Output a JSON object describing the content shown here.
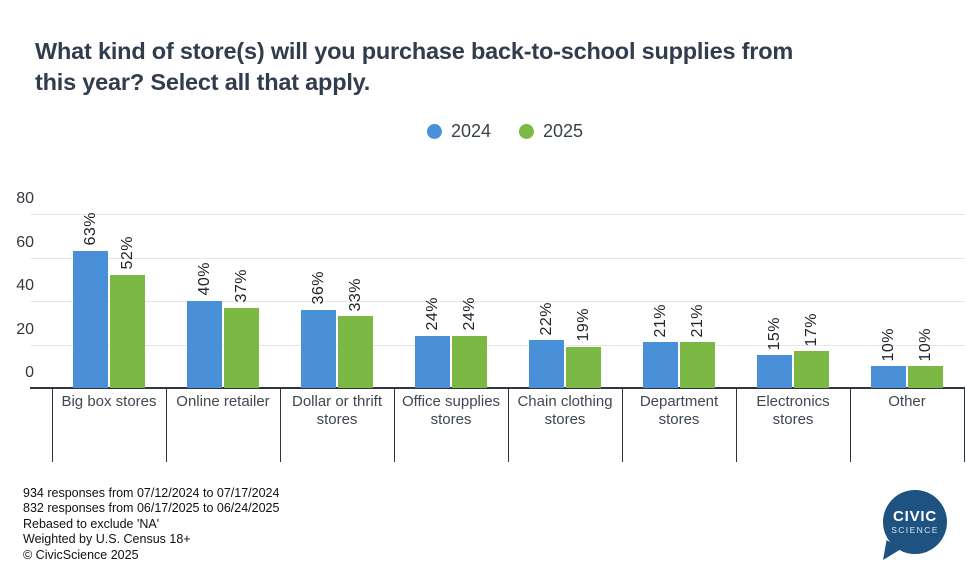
{
  "header": {
    "title": "What kind of store(s) will you purchase back-to-school supplies from this year? Select all that apply.",
    "title_lines": [
      "What kind of store(s) will you purchase back-to-school supplies from",
      "this year? Select all that apply."
    ]
  },
  "chart_data": {
    "type": "bar",
    "categories": [
      "Big box stores",
      "Online retailer",
      "Dollar or thrift stores",
      "Office supplies stores",
      "Chain clothing stores",
      "Department stores",
      "Electronics stores",
      "Other"
    ],
    "series": [
      {
        "name": "2024",
        "color": "#4a90d9",
        "values": [
          63,
          40,
          36,
          24,
          22,
          21,
          15,
          10
        ]
      },
      {
        "name": "2025",
        "color": "#7cb844",
        "values": [
          52,
          37,
          33,
          24,
          19,
          21,
          17,
          10
        ]
      }
    ],
    "value_suffix": "%",
    "yticks": [
      0,
      20,
      40,
      60,
      80
    ],
    "ylim": [
      0,
      80
    ],
    "grid": true,
    "legend_position": "top-center",
    "bar_label_rotation": -90
  },
  "footer": {
    "lines": [
      "934 responses from 07/12/2024 to 07/17/2024",
      "832 responses from 06/17/2025 to 06/24/2025",
      "Rebased to exclude 'NA'",
      "Weighted by U.S. Census 18+",
      "© CivicScience 2025"
    ]
  },
  "logo": {
    "line1": "CIVIC",
    "line2": "SCIENCE",
    "color": "#1e5280"
  }
}
